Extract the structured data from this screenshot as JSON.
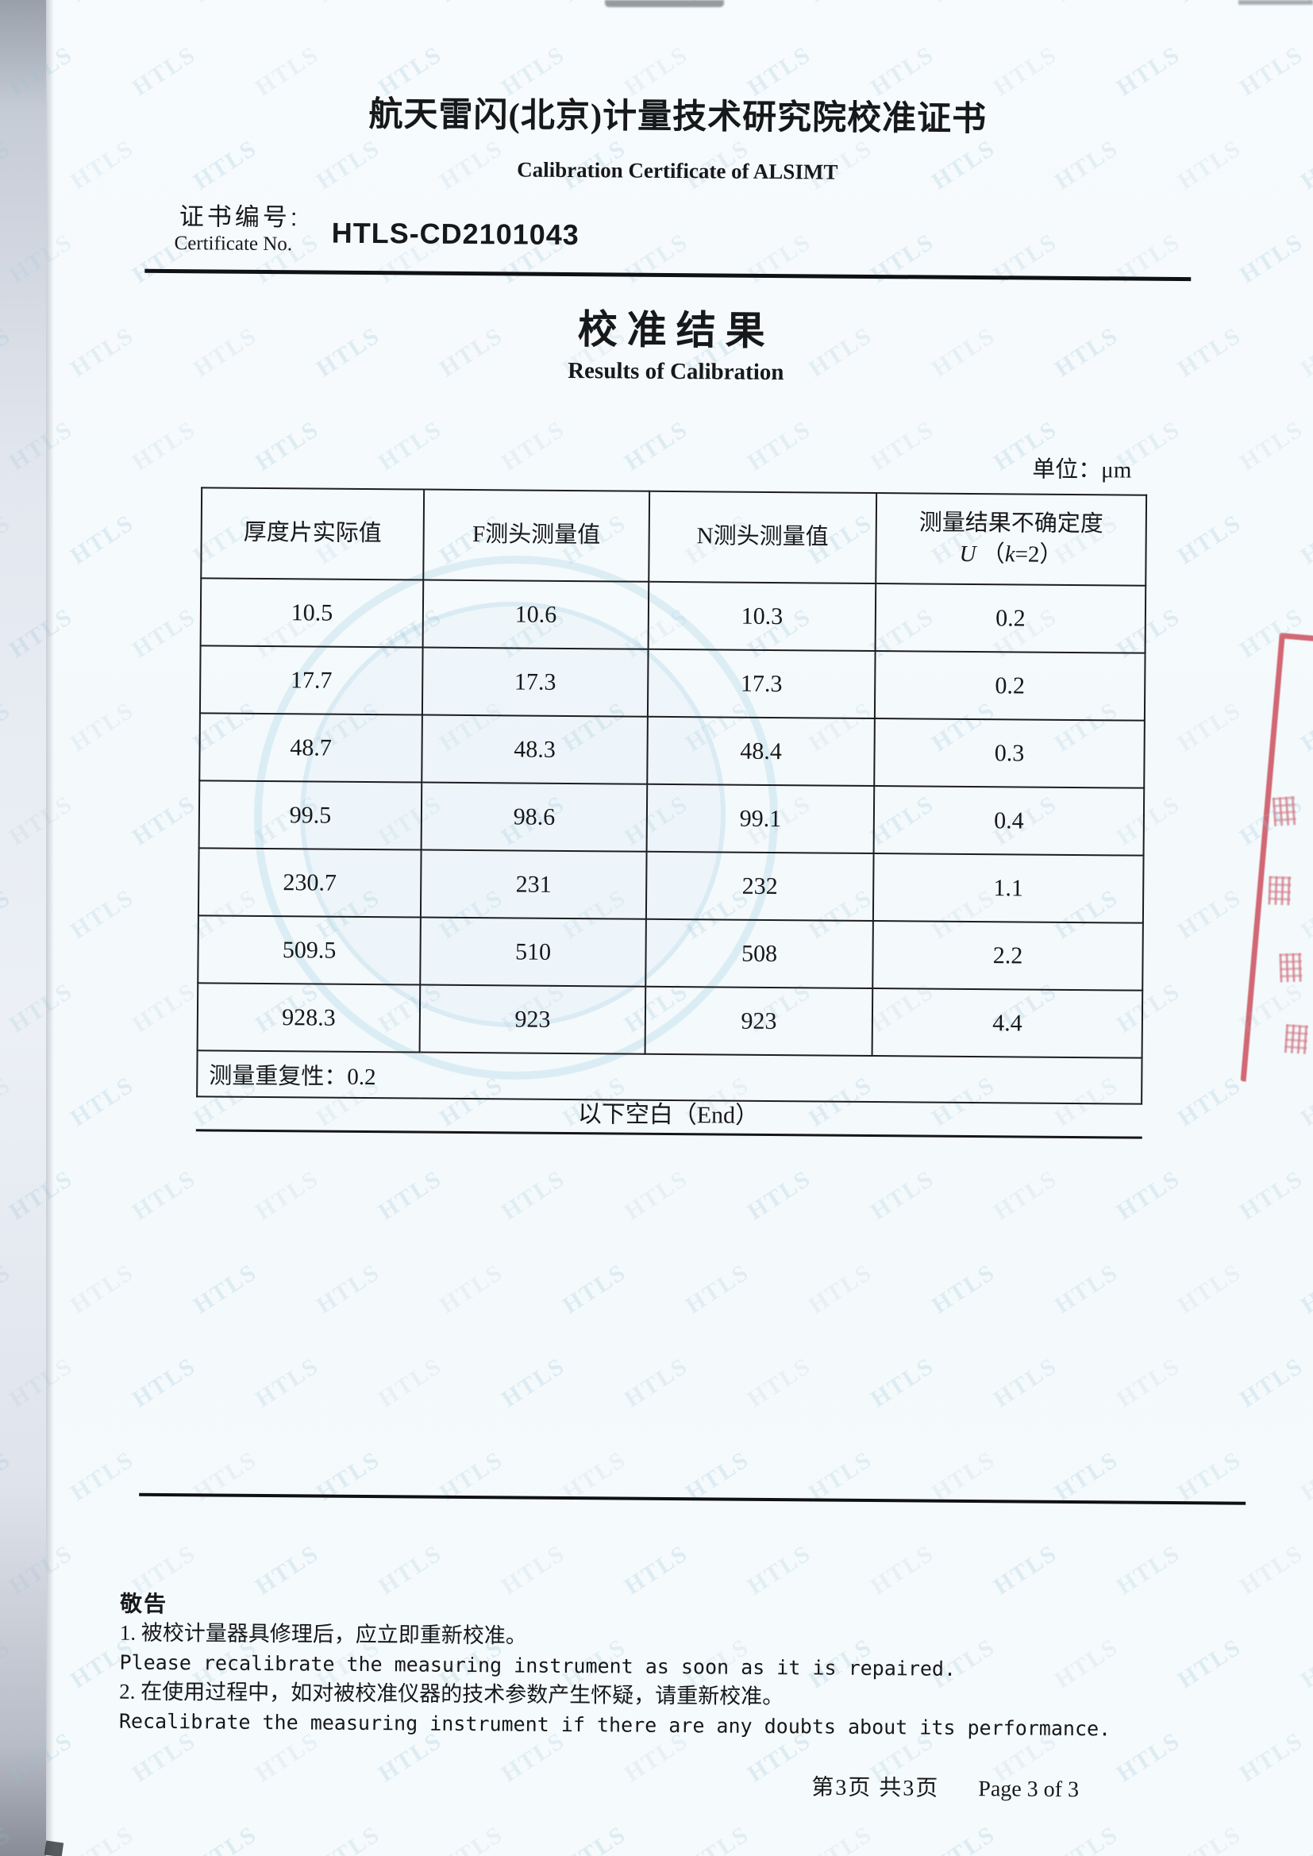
{
  "document": {
    "title_cn": "航天雷闪(北京)计量技术研究院校准证书",
    "title_en": "Calibration Certificate of ALSIMT",
    "certificate_no": {
      "label_cn": "证书编号:",
      "label_en": "Certificate No.",
      "value": "HTLS-CD2101043"
    },
    "results": {
      "title_cn": "校准结果",
      "title_en": "Results of Calibration",
      "unit_line": "单位：μm"
    },
    "table": {
      "headers": {
        "col1": "厚度片实际值",
        "col2": "F测头测量值",
        "col3": "N测头测量值",
        "col4_line1": "测量结果不确定度",
        "col4_U": "U",
        "col4_open": "（",
        "col4_k": "k",
        "col4_rest": "=2）"
      },
      "rows": [
        [
          "10.5",
          "10.6",
          "10.3",
          "0.2"
        ],
        [
          "17.7",
          "17.3",
          "17.3",
          "0.2"
        ],
        [
          "48.7",
          "48.3",
          "48.4",
          "0.3"
        ],
        [
          "99.5",
          "98.6",
          "99.1",
          "0.4"
        ],
        [
          "230.7",
          "231",
          "232",
          "1.1"
        ],
        [
          "509.5",
          "510",
          "508",
          "2.2"
        ],
        [
          "928.3",
          "923",
          "923",
          "4.4"
        ]
      ],
      "repeatability": "测量重复性：0.2",
      "end_note": "以下空白（End）"
    },
    "notice": {
      "heading": "敬告",
      "lines": [
        "1. 被校计量器具修理后，应立即重新校准。",
        "Please recalibrate the measuring instrument as soon as it is repaired.",
        "2. 在使用过程中，如对被校准仪器的技术参数产生怀疑，请重新校准。",
        "Recalibrate the measuring instrument if there are any doubts about its performance."
      ]
    },
    "footer": {
      "page_cn": "第3页 共3页",
      "page_en": "Page 3 of 3"
    },
    "watermark_text": "HTLS",
    "colors": {
      "stamp_red": "#c73e4c",
      "watermark_blue": "#98c1d5"
    }
  }
}
